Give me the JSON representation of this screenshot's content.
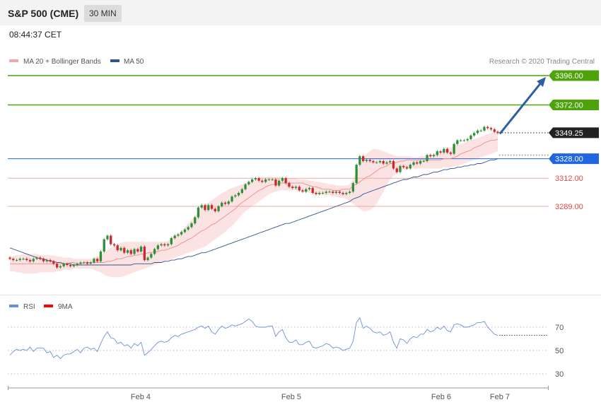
{
  "header": {
    "title": "S&P 500 (CME)",
    "interval": "30 MIN",
    "time": "08:44:37 CET"
  },
  "legend": {
    "ma20": "MA 20 + Bollinger Bands",
    "ma50": "MA 50",
    "copyright": "Research © 2020 Trading Central",
    "rsi": "RSI",
    "ma9": "9MA"
  },
  "colors": {
    "green": "#4ca40a",
    "blue": "#1f66e0",
    "red": "#e8483e",
    "pink_line": "#f4a7a7",
    "band": "#fbdede",
    "ma50": "#30538f",
    "candle_up": "#2e8f38",
    "candle_down": "#c8282e",
    "arrow": "#2e5ea3",
    "rsi": "#6b8fe0",
    "current": "#222222"
  },
  "chart_data": [
    {
      "type": "candlestick",
      "ylim": [
        3240,
        3405
      ],
      "x_ticks": [
        "Feb 4",
        "Feb 5",
        "Feb 6",
        "Feb 7"
      ],
      "levels": [
        {
          "label": "3396.00",
          "value": 3396.0,
          "kind": "resistance"
        },
        {
          "label": "3372.00",
          "value": 3372.0,
          "kind": "resistance"
        },
        {
          "label": "3349.25",
          "value": 3349.25,
          "kind": "current"
        },
        {
          "label": "3328.00",
          "value": 3328.0,
          "kind": "pivot"
        },
        {
          "label": "3312.00",
          "value": 3312.0,
          "kind": "support"
        },
        {
          "label": "3289.00",
          "value": 3289.0,
          "kind": "support"
        }
      ],
      "close": [
        3246,
        3245,
        3245,
        3246,
        3246,
        3245,
        3244,
        3246,
        3247,
        3246,
        3244,
        3245,
        3244,
        3242,
        3239,
        3240,
        3242,
        3241,
        3240,
        3241,
        3242,
        3243,
        3243,
        3242,
        3243,
        3246,
        3244,
        3252,
        3262,
        3265,
        3258,
        3257,
        3253,
        3255,
        3251,
        3253,
        3250,
        3254,
        3252,
        3256,
        3245,
        3247,
        3250,
        3254,
        3257,
        3258,
        3257,
        3258,
        3263,
        3265,
        3266,
        3268,
        3270,
        3272,
        3275,
        3280,
        3288,
        3290,
        3286,
        3290,
        3287,
        3285,
        3289,
        3292,
        3291,
        3293,
        3297,
        3298,
        3300,
        3303,
        3307,
        3309,
        3311,
        3312,
        3310,
        3309,
        3311,
        3311,
        3311,
        3306,
        3310,
        3312,
        3308,
        3305,
        3304,
        3305,
        3302,
        3301,
        3303,
        3304,
        3300,
        3299,
        3300,
        3300,
        3301,
        3301,
        3300,
        3301,
        3300,
        3299,
        3300,
        3301,
        3308,
        3323,
        3330,
        3326,
        3327,
        3326,
        3325,
        3325,
        3326,
        3324,
        3325,
        3326,
        3320,
        3317,
        3322,
        3321,
        3320,
        3323,
        3325,
        3324,
        3326,
        3326,
        3331,
        3330,
        3331,
        3334,
        3333,
        3336,
        3333,
        3332,
        3340,
        3343,
        3343,
        3343,
        3344,
        3347,
        3349,
        3351,
        3351,
        3354,
        3353,
        3352,
        3350,
        3349
      ],
      "ma20": [
        3242,
        3242,
        3242,
        3242,
        3242,
        3242,
        3242,
        3242,
        3242,
        3242,
        3242,
        3242,
        3242,
        3242,
        3242,
        3242,
        3242,
        3242,
        3243,
        3243,
        3242,
        3242,
        3243,
        3243,
        3243,
        3243,
        3243,
        3243,
        3243,
        3244,
        3244,
        3245,
        3246,
        3246,
        3247,
        3248,
        3248,
        3249,
        3249,
        3250,
        3250,
        3251,
        3251,
        3252,
        3252,
        3253,
        3253,
        3254,
        3255,
        3256,
        3257,
        3259,
        3260,
        3262,
        3263,
        3265,
        3267,
        3269,
        3270,
        3272,
        3274,
        3275,
        3277,
        3279,
        3281,
        3283,
        3285,
        3287,
        3290,
        3292,
        3294,
        3296,
        3298,
        3300,
        3302,
        3303,
        3305,
        3306,
        3307,
        3307,
        3308,
        3308,
        3308,
        3308,
        3308,
        3308,
        3308,
        3308,
        3307,
        3306,
        3305,
        3305,
        3304,
        3303,
        3303,
        3303,
        3302,
        3302,
        3302,
        3303,
        3303,
        3303,
        3306,
        3307,
        3309,
        3311,
        3313,
        3314,
        3316,
        3318,
        3320,
        3321,
        3322,
        3324,
        3324,
        3325,
        3326,
        3326,
        3327,
        3327,
        3327,
        3327,
        3327,
        3327,
        3327,
        3327,
        3327,
        3327,
        3327,
        3328,
        3328,
        3328,
        3329,
        3330,
        3332,
        3333,
        3334,
        3335,
        3337,
        3338,
        3339,
        3341,
        3342,
        3343,
        3343,
        3344
      ],
      "bb_upper": [
        3248,
        3248,
        3249,
        3249,
        3250,
        3250,
        3250,
        3250,
        3250,
        3249,
        3249,
        3249,
        3249,
        3249,
        3248,
        3248,
        3247,
        3247,
        3247,
        3246,
        3246,
        3246,
        3246,
        3246,
        3246,
        3247,
        3248,
        3249,
        3251,
        3253,
        3255,
        3257,
        3258,
        3259,
        3260,
        3260,
        3260,
        3260,
        3260,
        3260,
        3260,
        3260,
        3260,
        3260,
        3260,
        3260,
        3260,
        3261,
        3263,
        3265,
        3267,
        3269,
        3272,
        3275,
        3278,
        3281,
        3285,
        3288,
        3290,
        3292,
        3294,
        3296,
        3298,
        3300,
        3301,
        3303,
        3304,
        3305,
        3306,
        3307,
        3308,
        3309,
        3310,
        3311,
        3312,
        3313,
        3313,
        3313,
        3313,
        3313,
        3313,
        3313,
        3312,
        3312,
        3312,
        3312,
        3311,
        3311,
        3311,
        3310,
        3310,
        3309,
        3309,
        3308,
        3308,
        3307,
        3307,
        3306,
        3306,
        3306,
        3306,
        3307,
        3311,
        3317,
        3323,
        3328,
        3332,
        3334,
        3336,
        3336,
        3335,
        3334,
        3333,
        3332,
        3331,
        3330,
        3330,
        3330,
        3330,
        3330,
        3329,
        3329,
        3330,
        3330,
        3331,
        3331,
        3332,
        3333,
        3334,
        3335,
        3336,
        3337,
        3338,
        3339,
        3340,
        3341,
        3342,
        3343,
        3344,
        3345,
        3346,
        3347,
        3348,
        3349,
        3350,
        3351
      ],
      "bb_lower": [
        3236,
        3236,
        3235,
        3235,
        3234,
        3234,
        3234,
        3234,
        3234,
        3235,
        3235,
        3235,
        3235,
        3235,
        3236,
        3236,
        3237,
        3237,
        3237,
        3238,
        3238,
        3238,
        3238,
        3238,
        3238,
        3237,
        3236,
        3235,
        3233,
        3232,
        3231,
        3231,
        3231,
        3231,
        3232,
        3233,
        3234,
        3235,
        3236,
        3237,
        3238,
        3239,
        3240,
        3241,
        3242,
        3243,
        3244,
        3245,
        3246,
        3247,
        3248,
        3249,
        3250,
        3251,
        3252,
        3253,
        3254,
        3255,
        3256,
        3258,
        3260,
        3262,
        3264,
        3266,
        3268,
        3271,
        3273,
        3276,
        3279,
        3282,
        3285,
        3287,
        3289,
        3291,
        3293,
        3295,
        3297,
        3299,
        3300,
        3301,
        3302,
        3302,
        3302,
        3302,
        3302,
        3302,
        3302,
        3301,
        3301,
        3300,
        3300,
        3299,
        3299,
        3298,
        3298,
        3298,
        3297,
        3297,
        3296,
        3296,
        3295,
        3293,
        3291,
        3289,
        3287,
        3285,
        3285,
        3286,
        3288,
        3291,
        3296,
        3301,
        3306,
        3311,
        3314,
        3316,
        3318,
        3319,
        3320,
        3320,
        3320,
        3320,
        3320,
        3320,
        3320,
        3320,
        3320,
        3320,
        3320,
        3321,
        3321,
        3321,
        3322,
        3322,
        3323,
        3324,
        3325,
        3326,
        3327,
        3328,
        3329,
        3330,
        3331,
        3332,
        3333,
        3334
      ],
      "ma50": [
        3255,
        3254,
        3253,
        3252,
        3251,
        3250,
        3249,
        3248,
        3247,
        3246,
        3246,
        3245,
        3244,
        3244,
        3243,
        3243,
        3242,
        3242,
        3242,
        3241,
        3241,
        3241,
        3241,
        3241,
        3241,
        3241,
        3241,
        3241,
        3241,
        3241,
        3241,
        3241,
        3241,
        3241,
        3241,
        3241,
        3241,
        3242,
        3242,
        3242,
        3242,
        3242,
        3242,
        3243,
        3243,
        3243,
        3244,
        3244,
        3245,
        3245,
        3246,
        3246,
        3247,
        3248,
        3248,
        3249,
        3250,
        3251,
        3251,
        3252,
        3253,
        3254,
        3255,
        3256,
        3257,
        3258,
        3259,
        3260,
        3261,
        3262,
        3263,
        3264,
        3265,
        3266,
        3267,
        3268,
        3269,
        3270,
        3271,
        3272,
        3273,
        3274,
        3275,
        3275,
        3276,
        3277,
        3278,
        3279,
        3280,
        3281,
        3282,
        3283,
        3284,
        3285,
        3286,
        3287,
        3288,
        3289,
        3290,
        3291,
        3292,
        3293,
        3295,
        3296,
        3297,
        3299,
        3300,
        3301,
        3302,
        3303,
        3304,
        3305,
        3306,
        3307,
        3308,
        3309,
        3310,
        3311,
        3311,
        3312,
        3313,
        3313,
        3314,
        3315,
        3315,
        3316,
        3317,
        3317,
        3318,
        3319,
        3319,
        3320,
        3320,
        3321,
        3321,
        3322,
        3322,
        3323,
        3323,
        3324,
        3324,
        3325,
        3326,
        3327,
        3327,
        3328
      ]
    },
    {
      "type": "line",
      "name": "RSI",
      "ylim": [
        20,
        80
      ],
      "y_ticks": [
        70,
        50,
        30
      ],
      "current": 63,
      "values": [
        46,
        49,
        51,
        50,
        51,
        50,
        53,
        49,
        52,
        52,
        52,
        48,
        49,
        44,
        46,
        43,
        46,
        47,
        47,
        49,
        51,
        48,
        52,
        53,
        51,
        52,
        49,
        56,
        62,
        66,
        61,
        60,
        56,
        57,
        54,
        55,
        52,
        56,
        54,
        57,
        46,
        48,
        51,
        54,
        57,
        58,
        57,
        58,
        61,
        63,
        62,
        64,
        65,
        66,
        67,
        68,
        70,
        71,
        69,
        71,
        66,
        64,
        68,
        71,
        69,
        70,
        72,
        71,
        72,
        73,
        75,
        77,
        75,
        71,
        70,
        70,
        70,
        71,
        71,
        62,
        66,
        68,
        61,
        57,
        57,
        59,
        55,
        55,
        57,
        58,
        53,
        52,
        53,
        54,
        56,
        55,
        52,
        53,
        52,
        50,
        51,
        52,
        58,
        74,
        78,
        69,
        71,
        69,
        66,
        65,
        66,
        63,
        64,
        66,
        57,
        52,
        60,
        59,
        56,
        60,
        62,
        61,
        64,
        64,
        68,
        66,
        67,
        70,
        68,
        71,
        67,
        66,
        72,
        73,
        72,
        70,
        70,
        71,
        72,
        74,
        74,
        75,
        70,
        67,
        64,
        63
      ]
    }
  ]
}
